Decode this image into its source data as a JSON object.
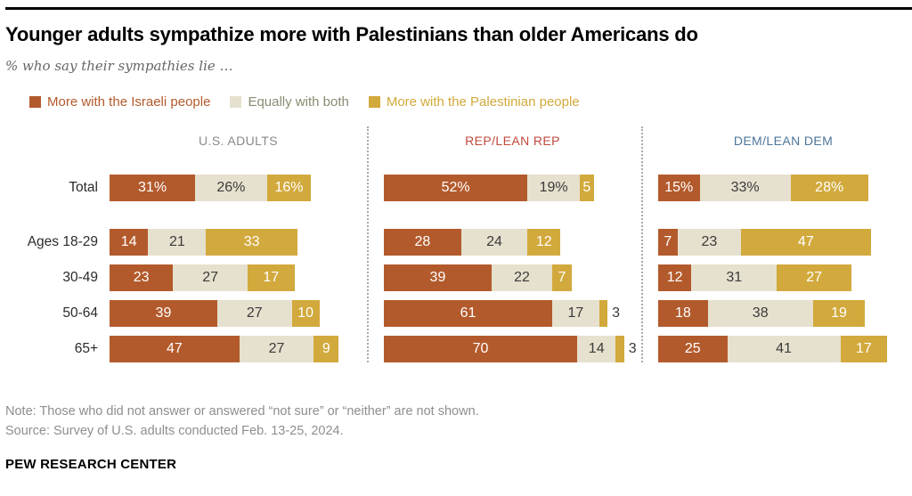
{
  "title": "Younger adults sympathize more with Palestinians than older Americans do",
  "subtitle": "% who say their sympathies lie …",
  "legend": [
    {
      "label": "More with the Israeli people",
      "swatch_color": "#b35a2c",
      "text_color": "#b35a2c"
    },
    {
      "label": "Equally with both",
      "swatch_color": "#e6e0ce",
      "text_color": "#8a8a72"
    },
    {
      "label": "More with the Palestinian people",
      "swatch_color": "#d2a93c",
      "text_color": "#d2a93c"
    }
  ],
  "chart_data": {
    "type": "bar",
    "stacked": true,
    "orientation": "horizontal",
    "unit": "% of respondents",
    "xlim": [
      0,
      100
    ],
    "grid": false,
    "categories": [
      "Total",
      "Ages 18-29",
      "30-49",
      "50-64",
      "65+"
    ],
    "series_names": [
      "More with the Israeli people",
      "Equally with both",
      "More with the Palestinian people"
    ],
    "series_colors": [
      "#b35a2c",
      "#e6e0ce",
      "#d2a93c"
    ],
    "panels": [
      {
        "header": "U.S. ADULTS",
        "header_color": "#8a8a8a",
        "rows": [
          {
            "category": "Total",
            "values": [
              31,
              26,
              16
            ],
            "labels": [
              "31%",
              "26%",
              "16%"
            ]
          },
          {
            "category": "Ages 18-29",
            "values": [
              14,
              21,
              33
            ],
            "labels": [
              "14",
              "21",
              "33"
            ]
          },
          {
            "category": "30-49",
            "values": [
              23,
              27,
              17
            ],
            "labels": [
              "23",
              "27",
              "17"
            ]
          },
          {
            "category": "50-64",
            "values": [
              39,
              27,
              10
            ],
            "labels": [
              "39",
              "27",
              "10"
            ]
          },
          {
            "category": "65+",
            "values": [
              47,
              27,
              9
            ],
            "labels": [
              "47",
              "27",
              "9"
            ]
          }
        ]
      },
      {
        "header": "REP/LEAN REP",
        "header_color": "#c0493c",
        "rows": [
          {
            "category": "Total",
            "values": [
              52,
              19,
              5
            ],
            "labels": [
              "52%",
              "19%",
              "5"
            ]
          },
          {
            "category": "Ages 18-29",
            "values": [
              28,
              24,
              12
            ],
            "labels": [
              "28",
              "24",
              "12"
            ]
          },
          {
            "category": "30-49",
            "values": [
              39,
              22,
              7
            ],
            "labels": [
              "39",
              "22",
              "7"
            ]
          },
          {
            "category": "50-64",
            "values": [
              61,
              17,
              3
            ],
            "labels": [
              "61",
              "17",
              "3"
            ]
          },
          {
            "category": "65+",
            "values": [
              70,
              14,
              3
            ],
            "labels": [
              "70",
              "14",
              "3"
            ]
          }
        ]
      },
      {
        "header": "DEM/LEAN DEM",
        "header_color": "#4d7599",
        "rows": [
          {
            "category": "Total",
            "values": [
              15,
              33,
              28
            ],
            "labels": [
              "15%",
              "33%",
              "28%"
            ]
          },
          {
            "category": "Ages 18-29",
            "values": [
              7,
              23,
              47
            ],
            "labels": [
              "7",
              "23",
              "47"
            ]
          },
          {
            "category": "30-49",
            "values": [
              12,
              31,
              27
            ],
            "labels": [
              "12",
              "31",
              "27"
            ]
          },
          {
            "category": "50-64",
            "values": [
              18,
              38,
              19
            ],
            "labels": [
              "18",
              "38",
              "19"
            ]
          },
          {
            "category": "65+",
            "values": [
              25,
              41,
              17
            ],
            "labels": [
              "25",
              "41",
              "17"
            ]
          }
        ]
      }
    ],
    "label_colors": {
      "on_brown": "#ffffff",
      "on_beige": "#3b3b3b",
      "on_gold": "#ffffff",
      "outside": "#3b3b3b"
    }
  },
  "note": "Note: Those who did not answer or answered “not sure” or “neither” are not shown.",
  "source": "Source: Survey of U.S. adults conducted Feb. 13-25, 2024.",
  "brand": "PEW RESEARCH CENTER"
}
